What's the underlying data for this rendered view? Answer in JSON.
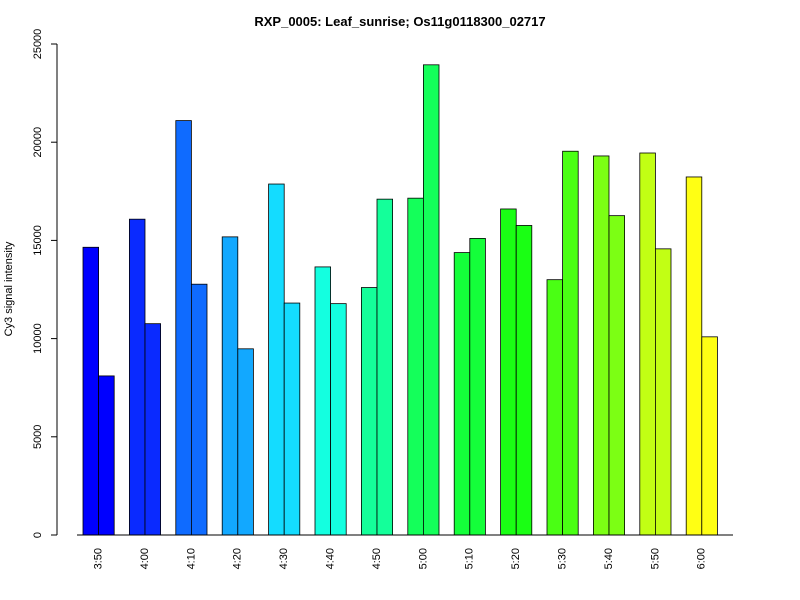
{
  "chart_data": {
    "type": "bar",
    "title": "RXP_0005: Leaf_sunrise; Os11g0118300_02717",
    "xlabel": "",
    "ylabel": "Cy3 signal intensity",
    "ylim": [
      0,
      25000
    ],
    "yticks": [
      0,
      5000,
      10000,
      15000,
      20000,
      25000
    ],
    "categories": [
      "3:50",
      "4:00",
      "4:10",
      "4:20",
      "4:30",
      "4:40",
      "4:50",
      "5:00",
      "5:10",
      "5:20",
      "5:30",
      "5:40",
      "5:50",
      "6:00"
    ],
    "series": [
      {
        "values": [
          14650,
          16080,
          21100,
          15180,
          17870,
          13650,
          12600,
          17150,
          14380,
          16600,
          13000,
          19300,
          19450,
          18230
        ]
      },
      {
        "values": [
          8100,
          10760,
          12770,
          9480,
          11810,
          11780,
          17100,
          23940,
          15100,
          15760,
          19540,
          16260,
          14570,
          10090
        ]
      }
    ],
    "colors": [
      "#0000ff",
      "#0a2aff",
      "#0f6bff",
      "#12a8ff",
      "#14dcff",
      "#14ffe0",
      "#14ff9a",
      "#14ff5a",
      "#14ff3a",
      "#1aff14",
      "#4aff14",
      "#7cff14",
      "#c2ff14",
      "#ffff14"
    ],
    "grid": false,
    "legend": "none"
  }
}
